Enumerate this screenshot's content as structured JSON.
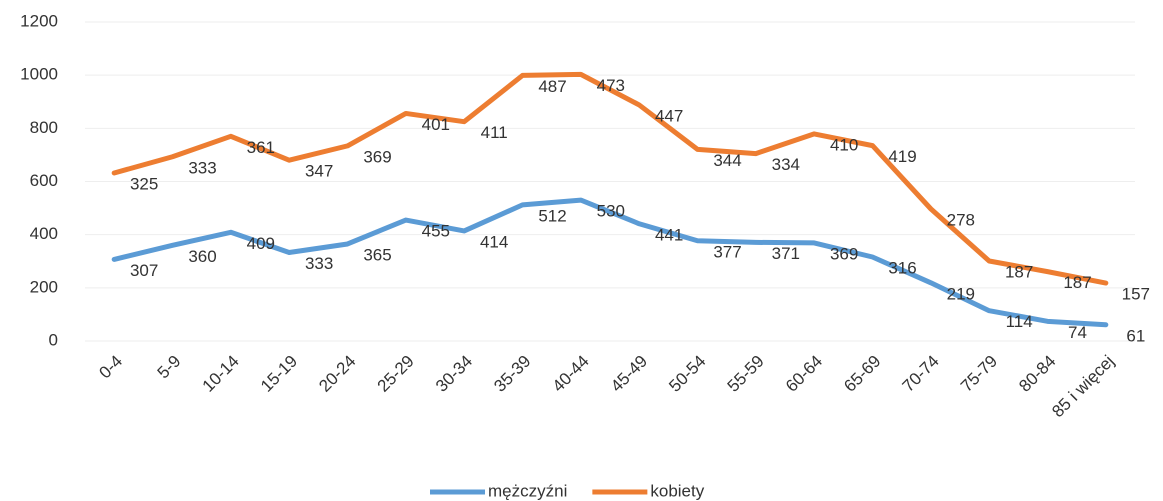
{
  "chart_data": {
    "type": "line",
    "stacked": true,
    "categories": [
      "0-4",
      "5-9",
      "10-14",
      "15-19",
      "20-24",
      "25-29",
      "30-34",
      "35-39",
      "40-44",
      "45-49",
      "50-54",
      "55-59",
      "60-64",
      "65-69",
      "70-74",
      "75-79",
      "80-84",
      "85 i więcej"
    ],
    "series": [
      {
        "name": "mężczyźni",
        "color": "#5b9bd5",
        "values": [
          307,
          360,
          409,
          333,
          365,
          455,
          414,
          512,
          530,
          441,
          377,
          371,
          369,
          316,
          219,
          114,
          74,
          61
        ]
      },
      {
        "name": "kobiety",
        "color": "#ed7d31",
        "values": [
          325,
          333,
          361,
          347,
          369,
          401,
          411,
          487,
          473,
          447,
          344,
          334,
          410,
          419,
          278,
          187,
          187,
          157
        ]
      }
    ],
    "ylim": [
      0,
      1200
    ],
    "yticks": [
      0,
      200,
      400,
      600,
      800,
      1000,
      1200
    ],
    "grid": true,
    "legend": "bottom"
  }
}
